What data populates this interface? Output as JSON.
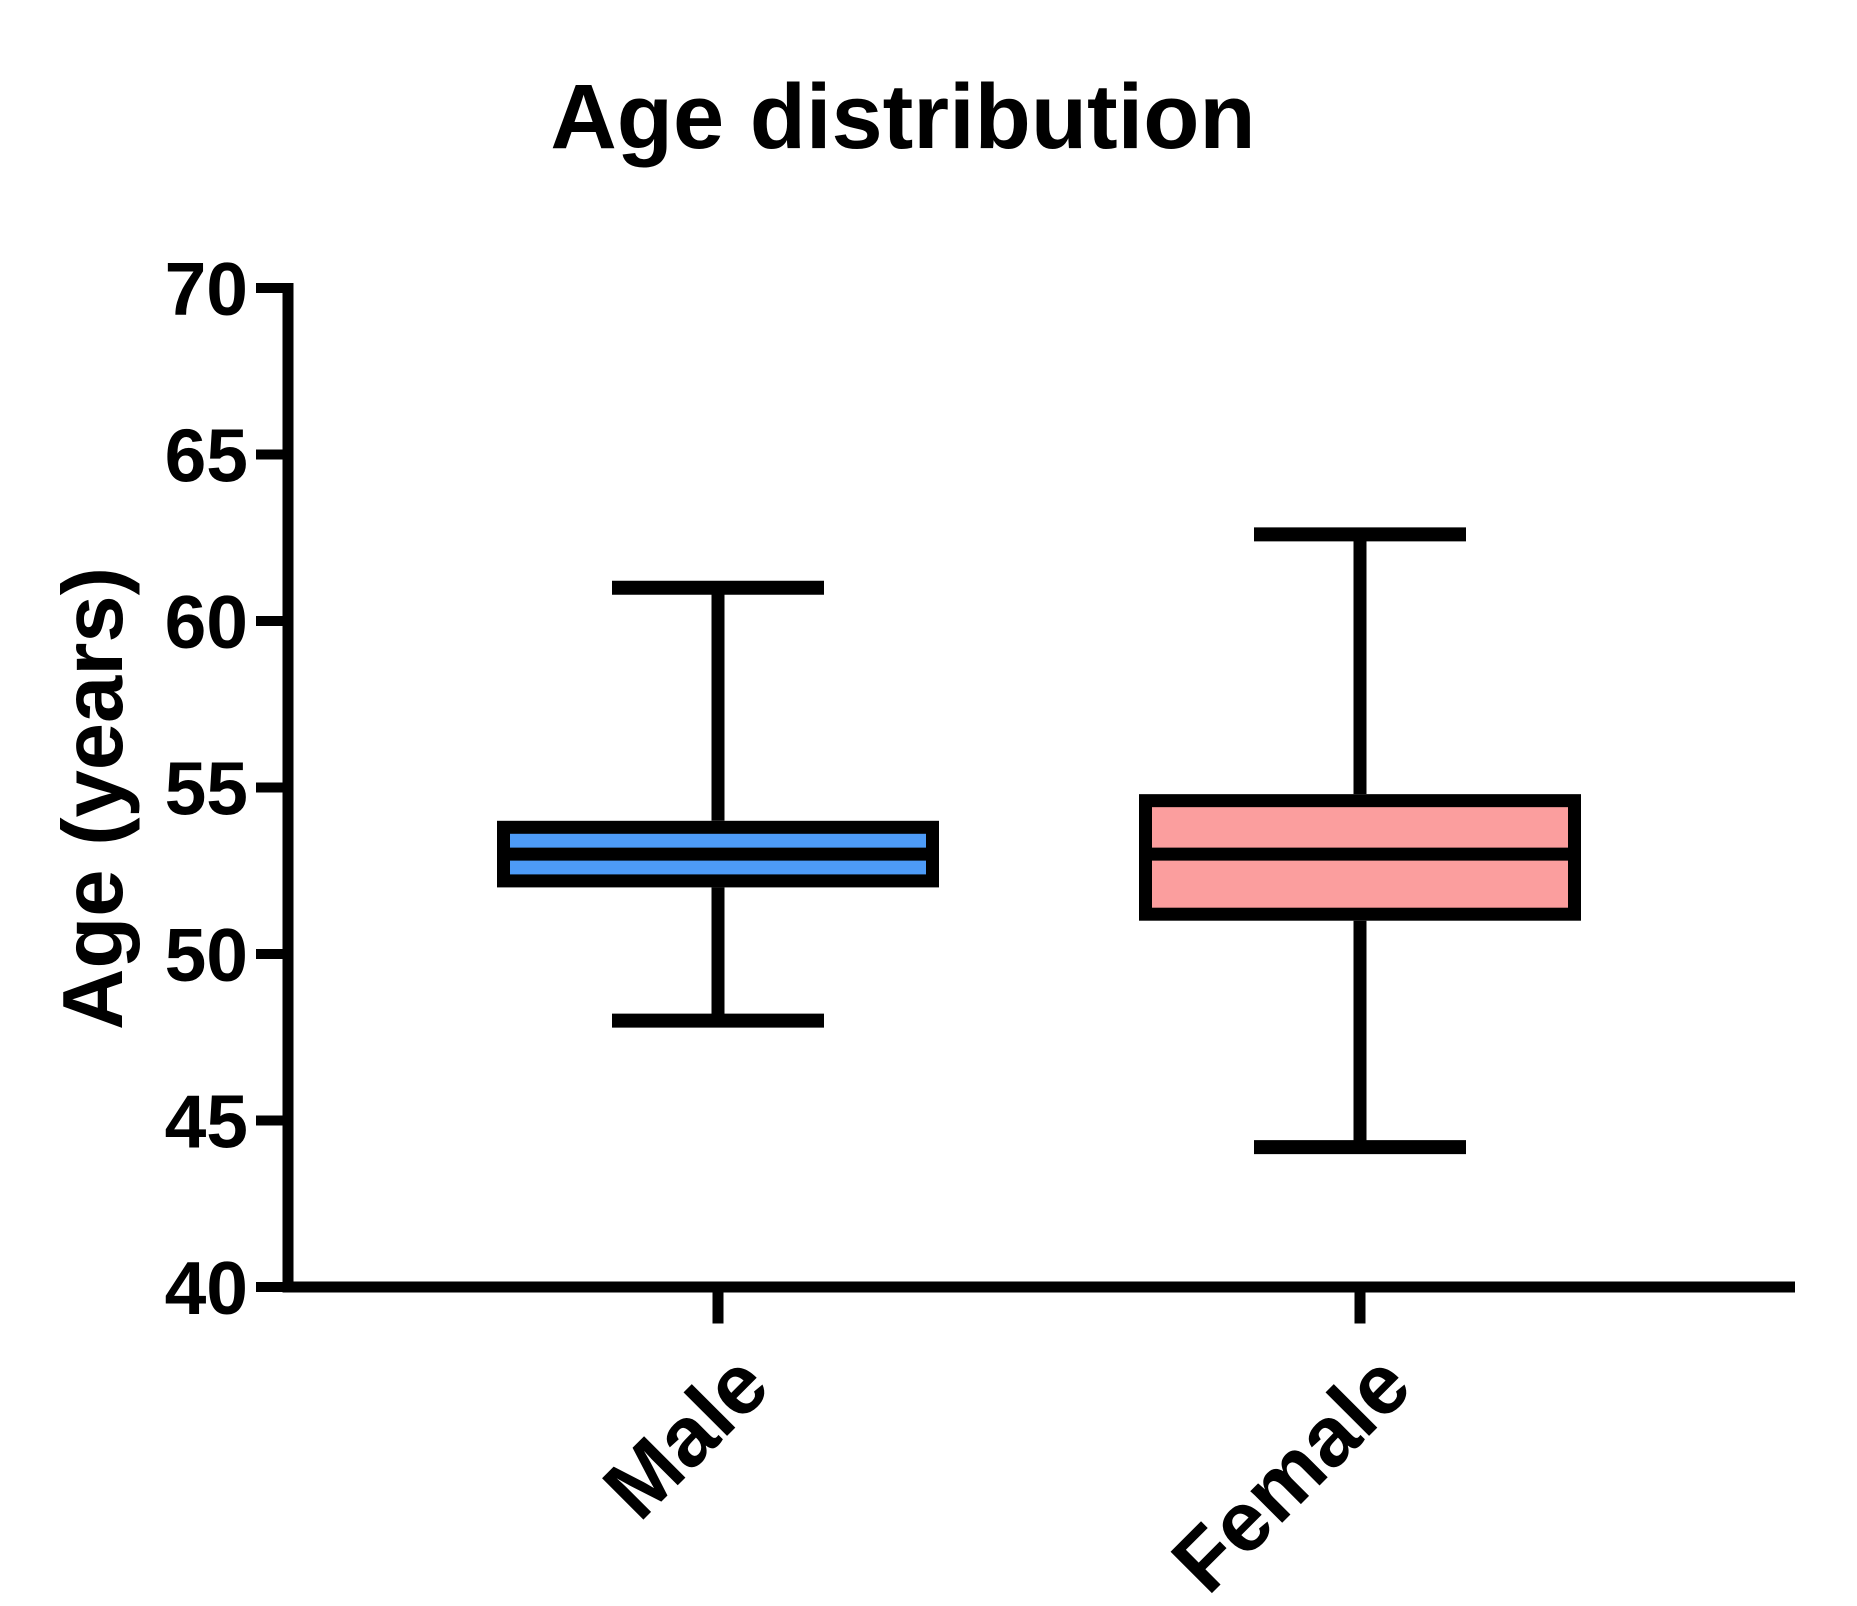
{
  "title": "Age distribution",
  "colors": {
    "male_fill": "#4D9BF7",
    "female_fill": "#FB9E9E",
    "stroke": "#000000",
    "background": "#FFFFFF"
  },
  "chart_data": {
    "type": "boxplot",
    "title": "Age distribution",
    "xlabel": "",
    "ylabel": "Age (years)",
    "ylim": [
      40,
      70
    ],
    "yticks": [
      40,
      45,
      50,
      55,
      60,
      65,
      70
    ],
    "categories": [
      "Male",
      "Female"
    ],
    "series": [
      {
        "name": "Male",
        "min": 48,
        "q1": 52,
        "median": 53,
        "q3": 54,
        "max": 61,
        "fill": "#4D9BF7"
      },
      {
        "name": "Female",
        "min": 44.2,
        "q1": 51,
        "median": 53,
        "q3": 54.8,
        "max": 62.6,
        "fill": "#FB9E9E"
      }
    ],
    "grid": false,
    "legend": "none",
    "x_tick_label_rotation_deg": 45
  }
}
